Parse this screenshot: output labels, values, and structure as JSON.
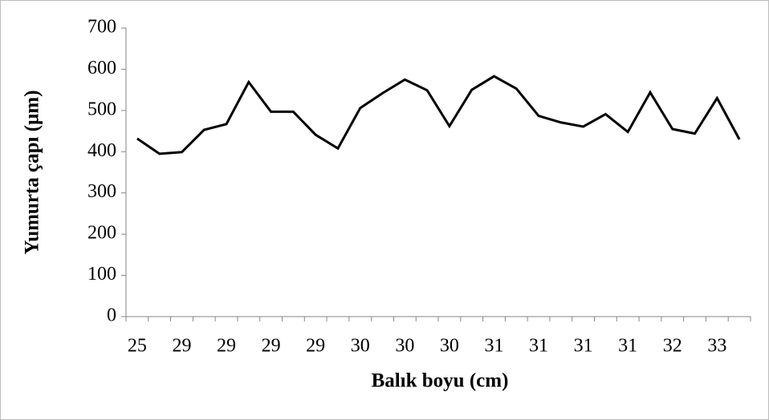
{
  "chart_data": {
    "type": "line",
    "x_label": "Balık boyu (cm)",
    "y_label": "Yumurta çapı (µm)",
    "categories": [
      "25",
      null,
      "29",
      null,
      "29",
      null,
      "29",
      null,
      "29",
      null,
      "30",
      null,
      "30",
      null,
      "30",
      null,
      "31",
      null,
      "31",
      null,
      "31",
      null,
      "31",
      null,
      "32",
      null,
      "33",
      null
    ],
    "series": [
      {
        "color": "#000000",
        "values": [
          432,
          395,
          399,
          453,
          467,
          569,
          497,
          497,
          441,
          408,
          506,
          542,
          575,
          549,
          462,
          550,
          583,
          553,
          487,
          471,
          461,
          491,
          448,
          544,
          455,
          444,
          530,
          430
        ]
      }
    ],
    "ylim": [
      0,
      700
    ],
    "yticks": [
      0,
      100,
      200,
      300,
      400,
      500,
      600,
      700
    ],
    "grid": false
  }
}
